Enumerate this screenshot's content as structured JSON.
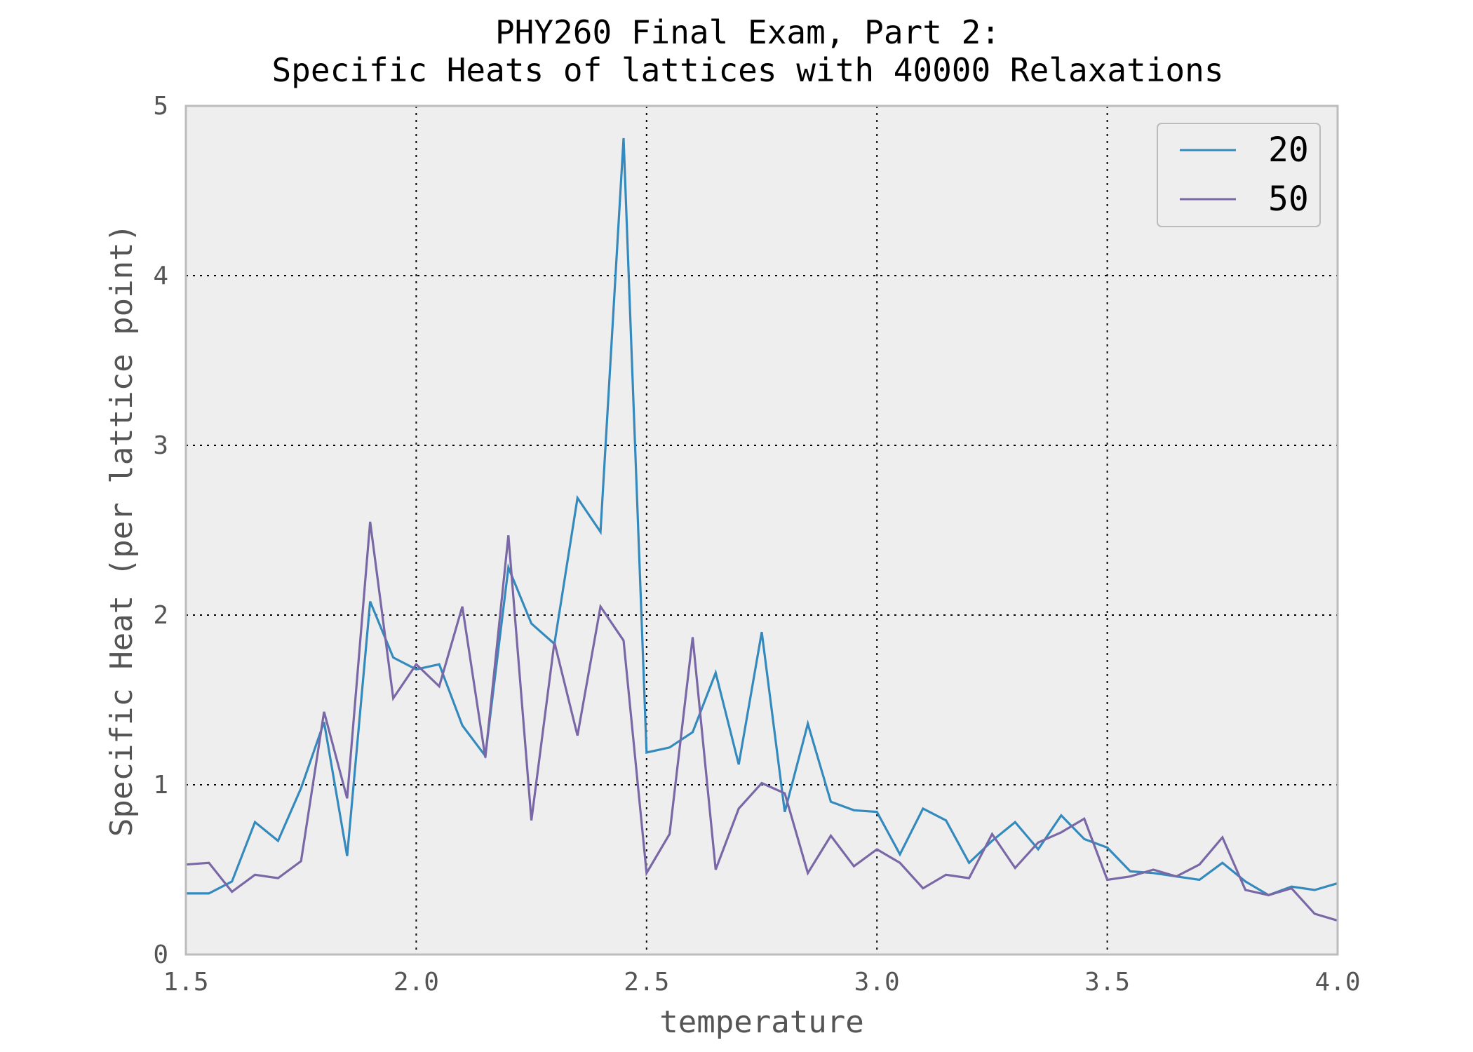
{
  "chart_data": {
    "type": "line",
    "title": "PHY260 Final Exam, Part 2:",
    "subtitle": "Specific Heats of lattices with 40000 Relaxations",
    "xlabel": "temperature",
    "ylabel": "Specific Heat (per lattice point)",
    "xlim": [
      1.5,
      4.0
    ],
    "ylim": [
      0,
      5
    ],
    "xticks": [
      "1.5",
      "2.0",
      "2.5",
      "3.0",
      "3.5",
      "4.0"
    ],
    "yticks": [
      "0",
      "1",
      "2",
      "3",
      "4",
      "5"
    ],
    "grid": true,
    "legend_position": "top-right",
    "x": [
      1.5,
      1.55,
      1.6,
      1.65,
      1.7,
      1.75,
      1.8,
      1.85,
      1.9,
      1.95,
      2.0,
      2.05,
      2.1,
      2.15,
      2.2,
      2.25,
      2.3,
      2.35,
      2.4,
      2.45,
      2.5,
      2.55,
      2.6,
      2.65,
      2.7,
      2.75,
      2.8,
      2.85,
      2.9,
      2.95,
      3.0,
      3.05,
      3.1,
      3.15,
      3.2,
      3.25,
      3.3,
      3.35,
      3.4,
      3.45,
      3.5,
      3.55,
      3.6,
      3.65,
      3.7,
      3.75,
      3.8,
      3.85,
      3.9,
      3.95,
      4.0
    ],
    "series": [
      {
        "name": "20",
        "color": "#348abd",
        "values": [
          0.36,
          0.36,
          0.43,
          0.78,
          0.67,
          0.98,
          1.37,
          0.58,
          2.08,
          1.75,
          1.68,
          1.71,
          1.35,
          1.17,
          2.28,
          1.95,
          1.83,
          2.69,
          2.49,
          4.81,
          1.19,
          1.22,
          1.31,
          1.66,
          1.12,
          1.9,
          0.84,
          1.36,
          0.9,
          0.85,
          0.84,
          0.59,
          0.86,
          0.79,
          0.54,
          0.67,
          0.78,
          0.62,
          0.82,
          0.68,
          0.63,
          0.49,
          0.48,
          0.46,
          0.44,
          0.54,
          0.43,
          0.35,
          0.4,
          0.38,
          0.42
        ]
      },
      {
        "name": "50",
        "color": "#7a68a6",
        "values": [
          0.53,
          0.54,
          0.37,
          0.47,
          0.45,
          0.55,
          1.43,
          0.92,
          2.55,
          1.51,
          1.71,
          1.58,
          2.05,
          1.16,
          2.47,
          0.79,
          1.84,
          1.29,
          2.05,
          1.85,
          0.48,
          0.71,
          1.87,
          0.5,
          0.86,
          1.01,
          0.95,
          0.48,
          0.7,
          0.52,
          0.62,
          0.54,
          0.39,
          0.47,
          0.45,
          0.71,
          0.51,
          0.66,
          0.72,
          0.8,
          0.44,
          0.46,
          0.5,
          0.46,
          0.53,
          0.69,
          0.38,
          0.35,
          0.39,
          0.24,
          0.2
        ]
      }
    ]
  }
}
